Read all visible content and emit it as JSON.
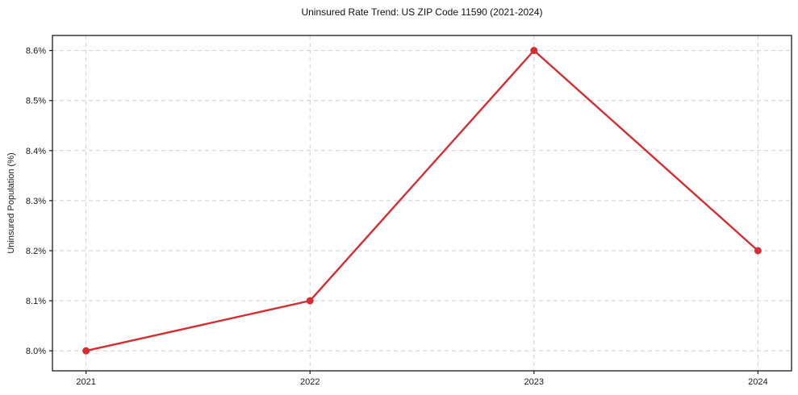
{
  "chart_data": {
    "type": "line",
    "title": "Uninsured Rate Trend: US ZIP Code 11590 (2021-2024)",
    "ylabel": "Uninsured Population (%)",
    "xlabel": "",
    "x": [
      2021,
      2022,
      2023,
      2024
    ],
    "categories": [
      "2021",
      "2022",
      "2023",
      "2024"
    ],
    "series": [
      {
        "name": "Uninsured rate",
        "values": [
          8.0,
          8.1,
          8.6,
          8.2
        ]
      }
    ],
    "yticks": [
      8.0,
      8.1,
      8.2,
      8.3,
      8.4,
      8.5,
      8.6
    ],
    "ytick_labels": [
      "8.0%",
      "8.1%",
      "8.2%",
      "8.3%",
      "8.4%",
      "8.5%",
      "8.6%"
    ],
    "xlim": [
      2020.85,
      2024.15
    ],
    "ylim": [
      7.96,
      8.63
    ],
    "grid": true,
    "grid_style": "dashed",
    "legend_position": "none",
    "line_color": "#d62d33",
    "marker_color": "#d62d33",
    "marker_shape": "circle",
    "grid_color": "#cfcfcf",
    "axis_color": "#1a1a1a"
  }
}
